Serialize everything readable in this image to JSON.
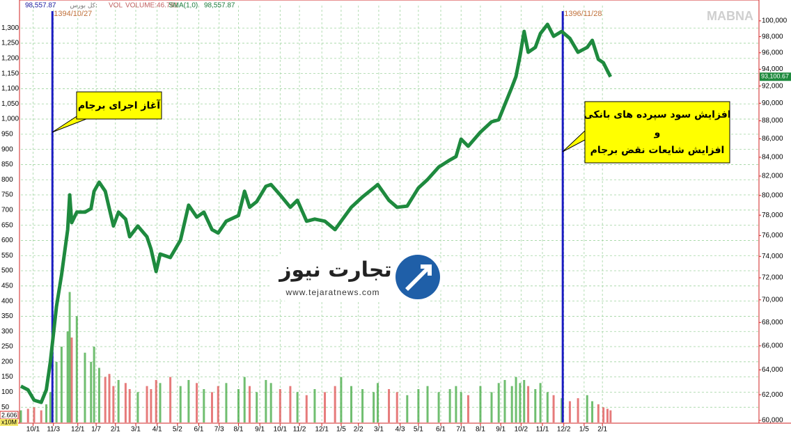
{
  "chart_data": {
    "type": "line",
    "header": [
      "98,557.87",
      "کل بورس:",
      "VOL",
      "VOLUME:46.761",
      "SMA(1,0)",
      "98,557.87"
    ],
    "watermark": "MABNA",
    "x": [
      -12,
      -5,
      1,
      8,
      13,
      17,
      23,
      28,
      34,
      36,
      38,
      43,
      51,
      57,
      60,
      65,
      71,
      75,
      79,
      84,
      91,
      95,
      103,
      112,
      116,
      121,
      125,
      135,
      145,
      153,
      161,
      168,
      176,
      182,
      190,
      202,
      208,
      213,
      220,
      229,
      234,
      243,
      253,
      260,
      269,
      277,
      287,
      297,
      303,
      313,
      324,
      335,
      339,
      350,
      358,
      368,
      379,
      388,
      399,
      410,
      416,
      421,
      428,
      440,
      451,
      458,
      464,
      471,
      475,
      479,
      483,
      487,
      494,
      499,
      506,
      512,
      520,
      528,
      536,
      545,
      550,
      556,
      561,
      565,
      568
    ],
    "series": [
      {
        "name": "کل بورس",
        "color": "#1e8a3e",
        "axis": "y2",
        "values": [
          62680,
          62390,
          61570,
          61400,
          62390,
          64650,
          69400,
          72270,
          76570,
          80050,
          77260,
          78300,
          78300,
          78650,
          80420,
          81360,
          80420,
          78650,
          76930,
          78300,
          77610,
          75880,
          76930,
          75880,
          74690,
          72580,
          74220,
          73890,
          75550,
          79000,
          77810,
          78300,
          76570,
          76240,
          77400,
          77960,
          80420,
          78790,
          79360,
          80930,
          81120,
          80050,
          78790,
          79500,
          77400,
          77610,
          77400,
          76570,
          77400,
          78790,
          79840,
          80760,
          81120,
          79500,
          78790,
          78910,
          80760,
          81630,
          82950,
          83700,
          84070,
          85960,
          85190,
          86730,
          87890,
          88120,
          89840,
          91870,
          93120,
          95640,
          98660,
          96060,
          96660,
          98390,
          99550,
          98050,
          98660,
          97780,
          96060,
          96660,
          97530,
          95200,
          94780,
          93790,
          93100.67
        ]
      },
      {
        "name": "VOL",
        "type": "bar",
        "color": "#4cae4c",
        "down_color": "#e05a5a",
        "axis": "y",
        "values": [
          40,
          45,
          50,
          40,
          60,
          100,
          200,
          250,
          300,
          430,
          280,
          350,
          230,
          200,
          250,
          180,
          150,
          160,
          120,
          140,
          130,
          110,
          100,
          120,
          110,
          140,
          130,
          150,
          120,
          140,
          130,
          110,
          100,
          120,
          130,
          110,
          150,
          120,
          100,
          140,
          130,
          110,
          120,
          100,
          90,
          110,
          100,
          120,
          150,
          120,
          110,
          100,
          130,
          110,
          100,
          90,
          110,
          120,
          100,
          110,
          120,
          100,
          90,
          120,
          100,
          130,
          140,
          120,
          150,
          130,
          140,
          120,
          110,
          130,
          100,
          90,
          80,
          70,
          80,
          90,
          70,
          60,
          50,
          45,
          40
        ]
      }
    ],
    "last_value": {
      "value": 93100.67,
      "label": "93,100.67"
    },
    "xlim": [
      -12,
      714
    ],
    "xticks": [
      {
        "value": 0,
        "label": "10/1"
      },
      {
        "value": 20,
        "label": "11/3"
      },
      {
        "value": 44,
        "label": "12/1"
      },
      {
        "value": 62,
        "label": "1/7"
      },
      {
        "value": 81,
        "label": "2/1"
      },
      {
        "value": 101,
        "label": "3/1"
      },
      {
        "value": 122,
        "label": "4/1"
      },
      {
        "value": 142,
        "label": "5/2"
      },
      {
        "value": 163,
        "label": "6/1"
      },
      {
        "value": 183,
        "label": "7/3"
      },
      {
        "value": 202,
        "label": "8/1"
      },
      {
        "value": 223,
        "label": "9/1"
      },
      {
        "value": 243,
        "label": "10/1"
      },
      {
        "value": 262,
        "label": "11/2"
      },
      {
        "value": 284,
        "label": "12/1"
      },
      {
        "value": 303,
        "label": "1/5"
      },
      {
        "value": 320,
        "label": "2/2"
      },
      {
        "value": 340,
        "label": "3/1"
      },
      {
        "value": 361,
        "label": "4/3"
      },
      {
        "value": 379,
        "label": "5/1"
      },
      {
        "value": 401,
        "label": "6/1"
      },
      {
        "value": 421,
        "label": "7/1"
      },
      {
        "value": 440,
        "label": "8/1"
      },
      {
        "value": 460,
        "label": "9/1"
      },
      {
        "value": 480,
        "label": "10/2"
      },
      {
        "value": 501,
        "label": "11/1"
      },
      {
        "value": 522,
        "label": "12/2"
      },
      {
        "value": 542,
        "label": "1/5"
      },
      {
        "value": 560,
        "label": "2/1"
      }
    ],
    "ylim": [
      0,
      1374
    ],
    "yticks": [
      50,
      100,
      150,
      200,
      250,
      300,
      350,
      400,
      450,
      500,
      550,
      600,
      650,
      700,
      750,
      800,
      850,
      900,
      950,
      {
        "value": 1000,
        "label": "1,000"
      },
      {
        "value": 1050,
        "label": "1,050"
      },
      {
        "value": 1100,
        "label": "1,100"
      },
      {
        "value": 1150,
        "label": "1,150"
      },
      {
        "value": 1200,
        "label": "1,200"
      },
      {
        "value": 1250,
        "label": "1,250"
      },
      {
        "value": 1300,
        "label": "1,300"
      }
    ],
    "y2lim": [
      59840,
      101970
    ],
    "y2log": true,
    "y2ticks": [
      {
        "value": 60000,
        "label": "60,000"
      },
      {
        "value": 62000,
        "label": "62,000"
      },
      {
        "value": 64000,
        "label": "64,000"
      },
      {
        "value": 66000,
        "label": "66,000"
      },
      {
        "value": 68000,
        "label": "68,000"
      },
      {
        "value": 70000,
        "label": "70,000"
      },
      {
        "value": 72000,
        "label": "72,000"
      },
      {
        "value": 74000,
        "label": "74,000"
      },
      {
        "value": 76000,
        "label": "76,000"
      },
      {
        "value": 78000,
        "label": "78,000"
      },
      {
        "value": 80000,
        "label": "80,000"
      },
      {
        "value": 82000,
        "label": "82,000"
      },
      {
        "value": 84000,
        "label": "84,000"
      },
      {
        "value": 86000,
        "label": "86,000"
      },
      {
        "value": 88000,
        "label": "88,000"
      },
      {
        "value": 90000,
        "label": "90,000"
      },
      {
        "value": 92000,
        "label": "92,000"
      },
      {
        "value": 94000,
        "label": "94,000"
      },
      {
        "value": 96000,
        "label": "96,000"
      },
      {
        "value": 98000,
        "label": "98,000"
      },
      {
        "value": 100000,
        "label": "100,000"
      }
    ],
    "grid": true,
    "events": [
      {
        "x": 19,
        "label": "1394/10/27",
        "color": "#1c1cc4"
      },
      {
        "x": 521,
        "label": "1396/11/28",
        "color": "#1c1cc4"
      }
    ],
    "annotations": [
      {
        "lines": [
          "آغاز اجرای برجام"
        ]
      },
      {
        "lines": [
          "افزایش سود سپرده های بانکی",
          "و",
          "افزایش شایعات نقض برجام"
        ]
      }
    ],
    "volume_scale": {
      "value": "2.606",
      "unit": "x10M"
    },
    "logo": {
      "title": "تجارت نیوز",
      "url": "www.tejaratnews.com"
    }
  }
}
